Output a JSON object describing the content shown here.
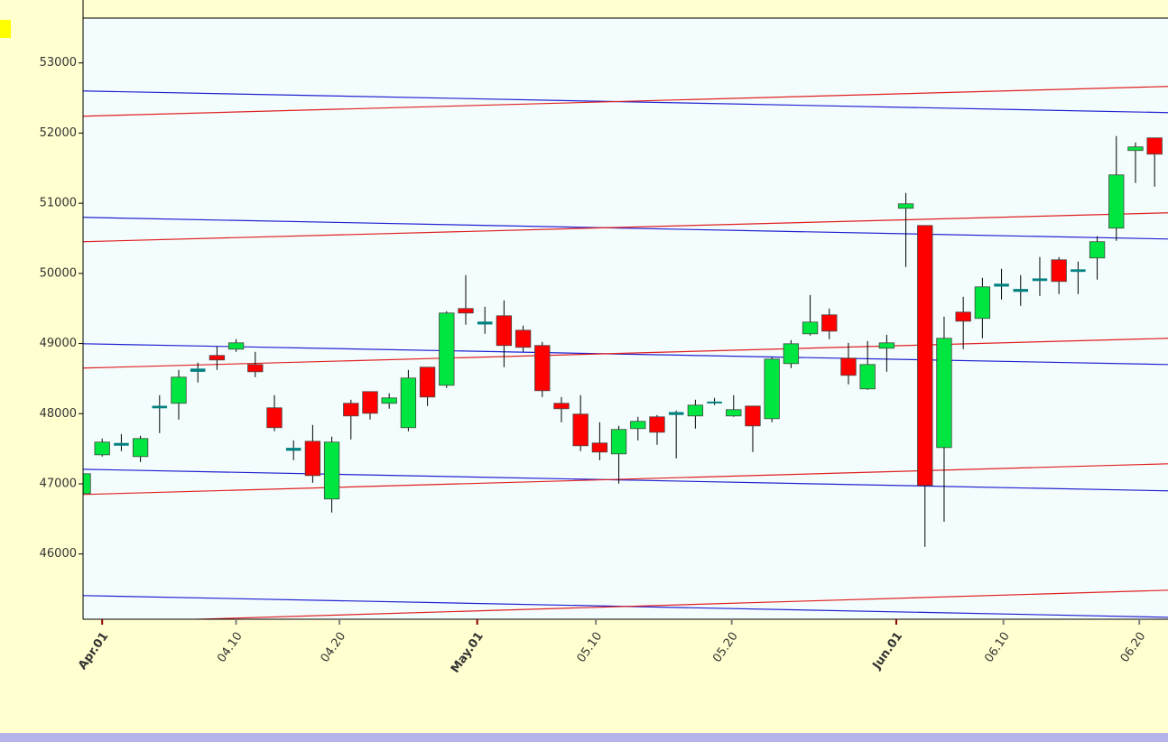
{
  "chart_data": {
    "type": "candlestick",
    "up_color": "#00e640",
    "down_color": "#ff0000",
    "doji_color": "#008080",
    "wick_color": "#000000",
    "open": [
      46861,
      47414,
      47557,
      47389,
      48090,
      48148,
      48610,
      48830,
      48920,
      48701,
      48084,
      47485,
      47607,
      46784,
      48148,
      48315,
      48148,
      47801,
      48663,
      48405,
      49499,
      49285,
      49396,
      49190,
      48972,
      48148,
      47994,
      47582,
      47427,
      47788,
      47955,
      47995,
      47968,
      48160,
      47968,
      48109,
      47929,
      48714,
      49139,
      49409,
      48792,
      48354,
      48933,
      50928,
      50683,
      47517,
      49448,
      49358,
      49825,
      49765,
      49905,
      50194,
      50035,
      50220,
      50645,
      51752,
      51932
    ],
    "high": [
      47402,
      47646,
      47710,
      47685,
      48264,
      48624,
      48727,
      48959,
      49062,
      48882,
      48264,
      47620,
      47839,
      47672,
      48199,
      48315,
      48290,
      48624,
      48663,
      49461,
      49976,
      49525,
      49615,
      49255,
      49023,
      48238,
      48264,
      47878,
      47826,
      47955,
      47981,
      48045,
      48199,
      48225,
      48264,
      48109,
      48804,
      49049,
      49692,
      49499,
      49010,
      49036,
      49126,
      51147,
      50683,
      49384,
      49667,
      49937,
      50066,
      49976,
      50233,
      50233,
      50169,
      50529,
      51958,
      51867,
      51932
    ],
    "low": [
      46861,
      47389,
      47466,
      47311,
      47723,
      47916,
      48444,
      48624,
      48882,
      48521,
      47749,
      47337,
      47015,
      46591,
      47633,
      47916,
      48071,
      47749,
      48109,
      48367,
      49268,
      49139,
      48663,
      48882,
      48238,
      47878,
      47466,
      47337,
      47003,
      47620,
      47556,
      47363,
      47788,
      48122,
      47955,
      47453,
      47878,
      48650,
      49113,
      49062,
      48418,
      48341,
      48598,
      50091,
      46102,
      46462,
      48920,
      49075,
      49628,
      49538,
      49679,
      49705,
      49705,
      49911,
      50465,
      51288,
      51237
    ],
    "close": [
      47144,
      47595,
      47570,
      47646,
      48100,
      48521,
      48630,
      48766,
      49010,
      48598,
      47801,
      47500,
      47118,
      47595,
      47968,
      48006,
      48225,
      48508,
      48238,
      49435,
      49435,
      49300,
      48972,
      48946,
      48328,
      48071,
      47543,
      47453,
      47775,
      47891,
      47736,
      48010,
      48122,
      48160,
      48058,
      47826,
      48779,
      48997,
      49306,
      49177,
      48547,
      48701,
      49010,
      50992,
      46977,
      49075,
      49319,
      49808,
      49840,
      49750,
      49915,
      49885,
      50045,
      50452,
      51404,
      51803,
      51700
    ],
    "trend_lines": [
      {
        "color": "#2020d0",
        "values": [
          52601,
          52292
        ]
      },
      {
        "color": "#e02020",
        "values": [
          52241,
          52665
        ]
      },
      {
        "color": "#2020d0",
        "values": [
          50799,
          50490
        ]
      },
      {
        "color": "#e02020",
        "values": [
          50452,
          50864
        ]
      },
      {
        "color": "#2020d0",
        "values": [
          48997,
          48701
        ]
      },
      {
        "color": "#e02020",
        "values": [
          48650,
          49075
        ]
      },
      {
        "color": "#2020d0",
        "values": [
          47208,
          46900
        ]
      },
      {
        "color": "#e02020",
        "values": [
          46848,
          47286
        ]
      },
      {
        "color": "#2020d0",
        "values": [
          45407,
          45098
        ]
      },
      {
        "color": "#e02020",
        "values": [
          45021,
          45484
        ]
      }
    ],
    "xlim": [
      0,
      56.7
    ],
    "ylim": [
      45070,
      53640
    ],
    "yticks": [
      46000,
      47000,
      48000,
      49000,
      50000,
      51000,
      52000,
      53000
    ],
    "xticks": [
      {
        "value": 1,
        "label": "Apr.01",
        "color": "#8b0000"
      },
      {
        "value": 8,
        "label": "04.10",
        "color": "#808080"
      },
      {
        "value": 13.4,
        "label": "04.20",
        "color": "#808080"
      },
      {
        "value": 20.6,
        "label": "May.01",
        "color": "#8b0000"
      },
      {
        "value": 26.8,
        "label": "05.10",
        "color": "#808080"
      },
      {
        "value": 33.9,
        "label": "05.20",
        "color": "#808080"
      },
      {
        "value": 42.5,
        "label": "Jun.01",
        "color": "#8b0000"
      },
      {
        "value": 48.1,
        "label": "06.10",
        "color": "#808080"
      },
      {
        "value": 55.2,
        "label": "06.20",
        "color": "#808080"
      }
    ]
  }
}
